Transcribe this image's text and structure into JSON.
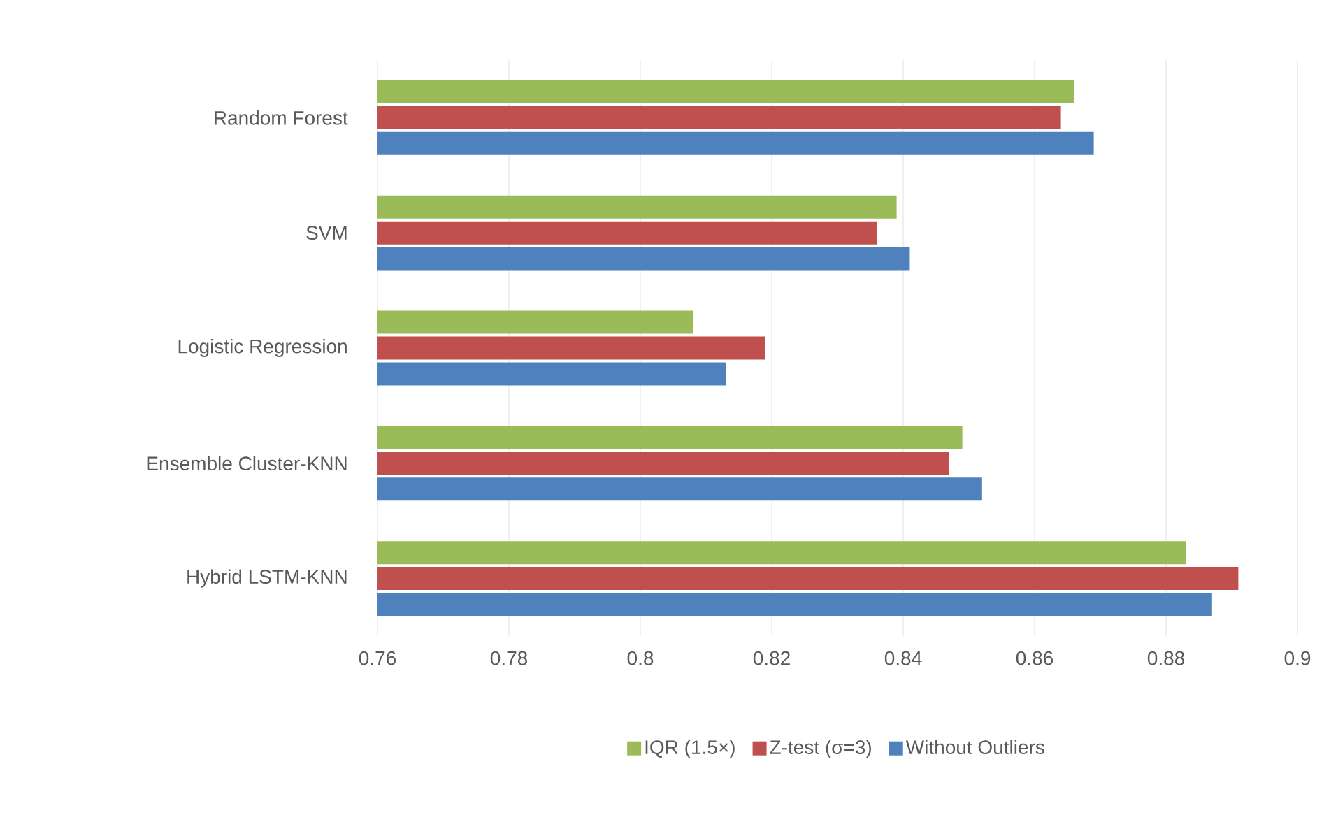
{
  "chart_data": {
    "type": "bar",
    "orientation": "horizontal",
    "categories": [
      "Random Forest",
      "SVM",
      "Logistic Regression",
      "Ensemble Cluster-KNN",
      "Hybrid LSTM-KNN"
    ],
    "series": [
      {
        "name": "IQR (1.5×)",
        "color": "#9bbb59",
        "values": [
          0.866,
          0.839,
          0.808,
          0.849,
          0.883
        ]
      },
      {
        "name": "Z-test (σ=3)",
        "color": "#c0504d",
        "values": [
          0.864,
          0.836,
          0.819,
          0.847,
          0.891
        ]
      },
      {
        "name": "Without Outliers",
        "color": "#4f81bd",
        "values": [
          0.869,
          0.841,
          0.813,
          0.852,
          0.887
        ]
      }
    ],
    "xlim": [
      0.76,
      0.9
    ],
    "xticks": [
      0.76,
      0.78,
      0.8,
      0.82,
      0.84,
      0.86,
      0.88,
      0.9
    ],
    "grid": "x",
    "legend": "bottom"
  }
}
